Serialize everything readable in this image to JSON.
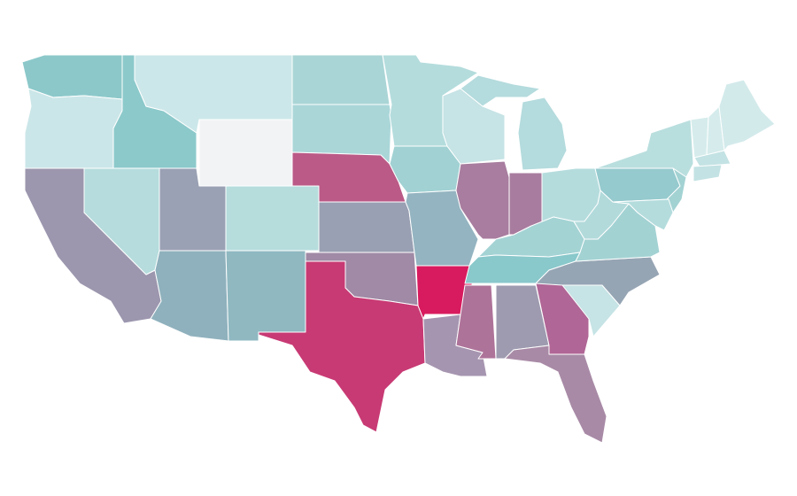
{
  "map": {
    "fills": [
      "#8cc8ca",
      "#cbe6e8",
      "#9c96ae",
      "#8cc9cb",
      "#b6dcdd",
      "#cce7e9",
      "#f2f3f5",
      "#9aa1b4",
      "#8fb1bd",
      "#b6dcdc",
      "#8fb8c1",
      "#aad5d6",
      "#aad6d8",
      "#bb5a87",
      "#9aa0b3",
      "#a08aa5",
      "#c83a74",
      "#b4dcdd",
      "#a1d1d3",
      "#94b4c1",
      "#d81b5e",
      "#a695b0",
      "#c6e3e5",
      "#a87d9f",
      "#b4dbdd",
      "#b4dbdd",
      "#a87c9f",
      "#b5dcdd",
      "#a4d3d4",
      "#89c8cb",
      "#ae7399",
      "#9e9bb0",
      "#b06696",
      "#a88aa6",
      "#c6e3e5",
      "#96a5b4",
      "#a3d2d3",
      "#b2dadb",
      "#95cace",
      "#b9dede",
      "#a3d2d3",
      "#b4dcdd",
      "#d6ecec",
      "#d6ecec",
      "#d3eaeb",
      "#c3e2e3",
      "#c3e2e3"
    ]
  }
}
